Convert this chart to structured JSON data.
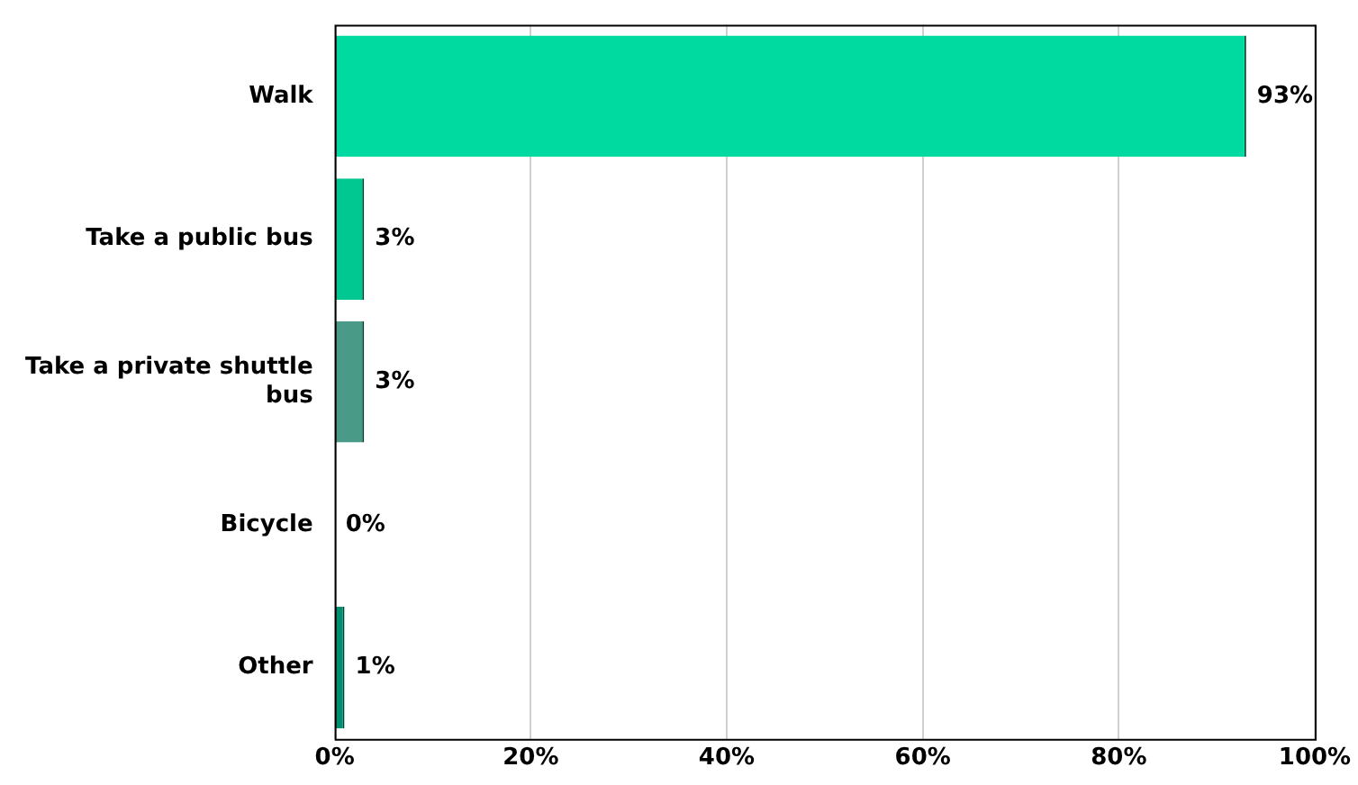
{
  "chart_data": {
    "type": "bar",
    "orientation": "horizontal",
    "categories": [
      "Walk",
      "Take a public bus",
      "Take a private shuttle bus",
      "Bicycle",
      "Other"
    ],
    "values": [
      93,
      3,
      3,
      0,
      1
    ],
    "colors": [
      "#00d9a0",
      "#00c890",
      "#4a9a88",
      "#00d9a0",
      "#009070"
    ],
    "value_labels": [
      "93%",
      "3%",
      "3%",
      "0%",
      "1%"
    ],
    "xlim": [
      0,
      100
    ],
    "xticks": [
      {
        "value": 0,
        "label": "0%"
      },
      {
        "value": 20,
        "label": "20%"
      },
      {
        "value": 40,
        "label": "40%"
      },
      {
        "value": 60,
        "label": "60%"
      },
      {
        "value": 80,
        "label": "80%"
      },
      {
        "value": 100,
        "label": "100%"
      }
    ],
    "grid": "x",
    "legend": false
  }
}
